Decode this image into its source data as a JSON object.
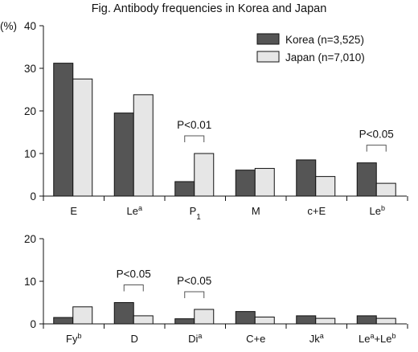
{
  "chart_data": [
    {
      "type": "bar",
      "title": "Fig.  Antibody frequencies in Korea and Japan",
      "ylabel": "(%)",
      "ylim": [
        0,
        40
      ],
      "yticks": [
        "0",
        "10",
        "20",
        "30",
        "40"
      ],
      "categories": [
        {
          "base": "E",
          "sup": "",
          "sub": ""
        },
        {
          "base": "Le",
          "sup": "a",
          "sub": ""
        },
        {
          "base": "P",
          "sup": "",
          "sub": "1"
        },
        {
          "base": "M",
          "sup": "",
          "sub": ""
        },
        {
          "base": "c+E",
          "sup": "",
          "sub": ""
        },
        {
          "base": "Le",
          "sup": "b",
          "sub": ""
        }
      ],
      "series": [
        {
          "name": "Korea (n=3,525)",
          "color": "#555555",
          "values": [
            31.2,
            19.5,
            3.4,
            6.1,
            8.5,
            7.8
          ]
        },
        {
          "name": "Japan (n=7,010)",
          "color": "#e6e6e6",
          "values": [
            27.5,
            23.8,
            10.0,
            6.5,
            4.6,
            3.0
          ]
        }
      ],
      "legend": "top-right",
      "annotations": [
        {
          "category_index": 2,
          "text": "P<0.01"
        },
        {
          "category_index": 5,
          "text": "P<0.05"
        }
      ]
    },
    {
      "type": "bar",
      "ylim": [
        0,
        20
      ],
      "yticks": [
        "0",
        "10",
        "20"
      ],
      "categories": [
        {
          "base": "Fy",
          "sup": "b",
          "sub": ""
        },
        {
          "base": "D",
          "sup": "",
          "sub": ""
        },
        {
          "base": "Di",
          "sup": "a",
          "sub": ""
        },
        {
          "base": "C+e",
          "sup": "",
          "sub": ""
        },
        {
          "base": "Jk",
          "sup": "a",
          "sub": ""
        },
        {
          "base": "Le",
          "sup": "a",
          "sub": "",
          "base2": "+Le",
          "sup2": "b"
        }
      ],
      "series": [
        {
          "name": "Korea (n=3,525)",
          "color": "#555555",
          "values": [
            1.5,
            5.0,
            1.2,
            2.9,
            1.9,
            1.9
          ]
        },
        {
          "name": "Japan (n=7,010)",
          "color": "#e6e6e6",
          "values": [
            4.0,
            1.9,
            3.4,
            1.6,
            1.3,
            1.3
          ]
        }
      ],
      "annotations": [
        {
          "category_index": 1,
          "text": "P<0.05"
        },
        {
          "category_index": 2,
          "text": "P<0.05"
        }
      ]
    }
  ]
}
